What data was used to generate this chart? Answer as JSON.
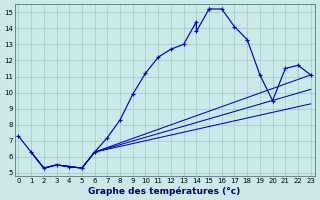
{
  "title": "Graphe des températures (°c)",
  "bg_color": "#cce8e8",
  "grid_color": "#99cccc",
  "line_color": "#0000cc",
  "xlim": [
    0,
    23
  ],
  "ylim": [
    5,
    15
  ],
  "xticks": [
    0,
    1,
    2,
    3,
    4,
    5,
    6,
    7,
    8,
    9,
    10,
    11,
    12,
    13,
    14,
    15,
    16,
    17,
    18,
    19,
    20,
    21,
    22,
    23
  ],
  "yticks": [
    5,
    6,
    7,
    8,
    9,
    10,
    11,
    12,
    13,
    14,
    15
  ],
  "main_line_x": [
    0,
    1,
    2,
    3,
    4,
    5,
    6,
    7,
    8,
    9,
    10,
    11,
    12,
    13,
    14,
    14,
    15,
    15,
    16,
    17,
    18,
    19,
    20,
    21,
    22,
    23
  ],
  "main_line_y": [
    7.3,
    6.3,
    5.3,
    5.5,
    5.4,
    5.3,
    6.3,
    7.2,
    8.3,
    9.9,
    11.2,
    12.2,
    12.7,
    13.0,
    14.4,
    13.8,
    15.2,
    15.2,
    15.2,
    14.1,
    13.3,
    11.1,
    9.5,
    11.5,
    11.7,
    11.1
  ],
  "fan_origin_x": 1,
  "fan_origin_y": 6.3,
  "fan_lines": [
    {
      "x": [
        1,
        2,
        3,
        4,
        5,
        6,
        23
      ],
      "y": [
        6.3,
        5.3,
        5.5,
        5.4,
        5.3,
        6.3,
        11.1
      ]
    },
    {
      "x": [
        1,
        2,
        3,
        4,
        5,
        6,
        23
      ],
      "y": [
        6.3,
        5.3,
        5.5,
        5.4,
        5.3,
        6.3,
        10.2
      ]
    },
    {
      "x": [
        1,
        2,
        3,
        4,
        5,
        6,
        23
      ],
      "y": [
        6.3,
        5.3,
        5.5,
        5.4,
        5.3,
        6.3,
        9.3
      ]
    }
  ]
}
